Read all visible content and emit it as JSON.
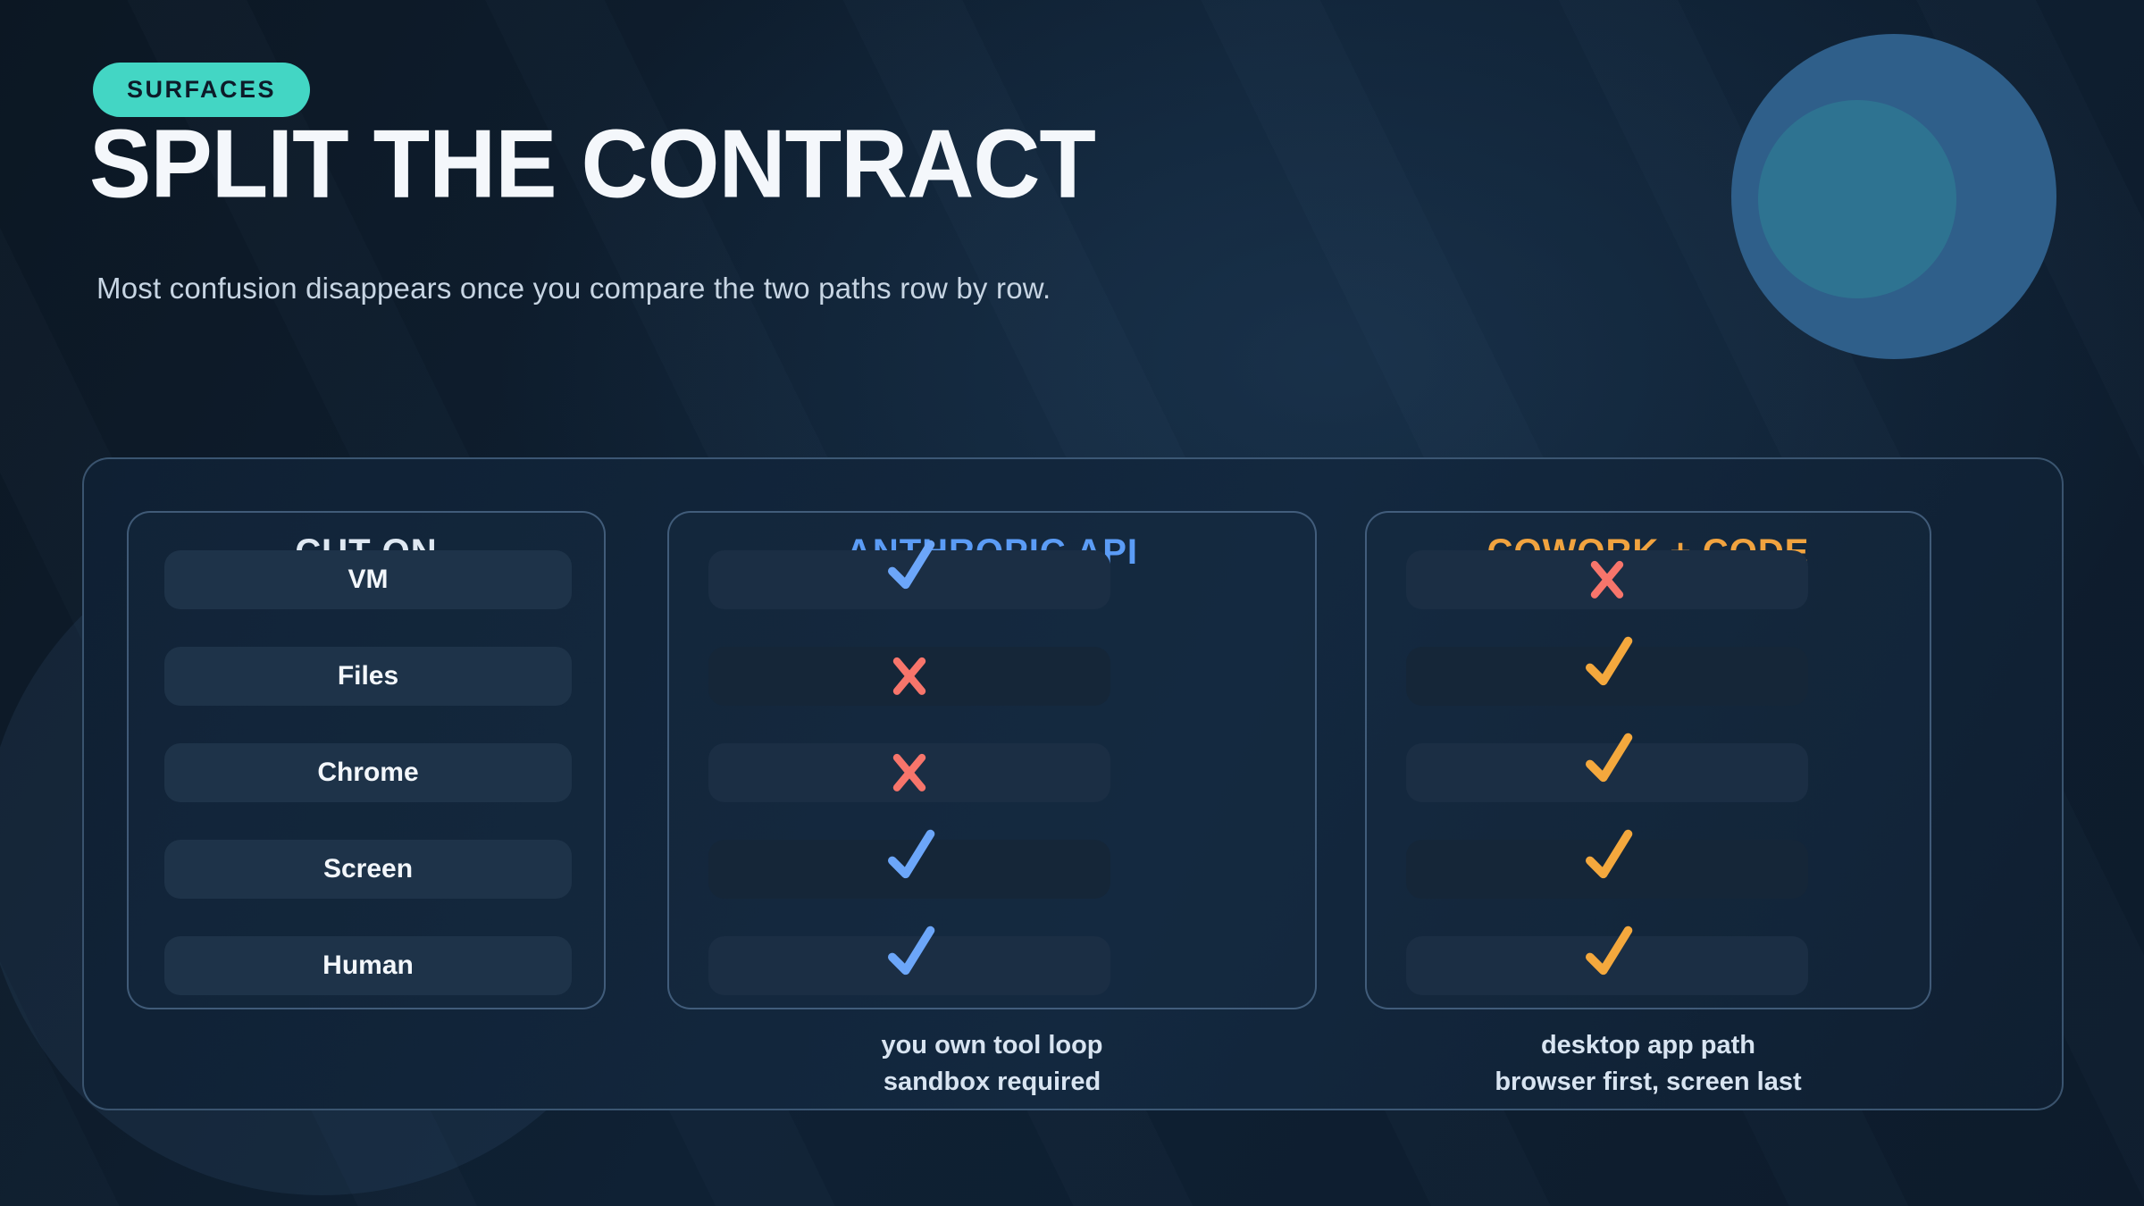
{
  "page": {
    "badge": "SURFACES",
    "title": "SPLIT THE CONTRACT",
    "subtitle": "Most confusion disappears once you compare the two paths row by row."
  },
  "table": {
    "row_labels": [
      "VM",
      "Files",
      "Chrome",
      "Screen",
      "Human"
    ],
    "columns": [
      {
        "header": "CUT ON",
        "header_color": "#dfe8f2",
        "type": "labels"
      },
      {
        "header": "ANTHROPIC API",
        "header_color": "#5b9cf6",
        "type": "marks",
        "marks": [
          "check",
          "cross",
          "cross",
          "check",
          "check"
        ],
        "check_color": "#6ca6f9",
        "cross_color": "#f7756b",
        "footer_line1": "you own tool loop",
        "footer_line2": "sandbox required"
      },
      {
        "header": "COWORK + CODE",
        "header_color": "#f1a33f",
        "type": "marks",
        "marks": [
          "cross",
          "check",
          "check",
          "check",
          "check"
        ],
        "check_color": "#f4a83d",
        "cross_color": "#f7756b",
        "footer_line1": "desktop app path",
        "footer_line2": "browser first, screen last"
      }
    ]
  },
  "colors": {
    "badge_bg": "#43d6c4",
    "accent_blue": "#6ca6f9",
    "accent_orange": "#f4a83d",
    "accent_red": "#f7756b",
    "circle_outer": "#2f5f8a",
    "circle_inner": "#2e7391"
  }
}
